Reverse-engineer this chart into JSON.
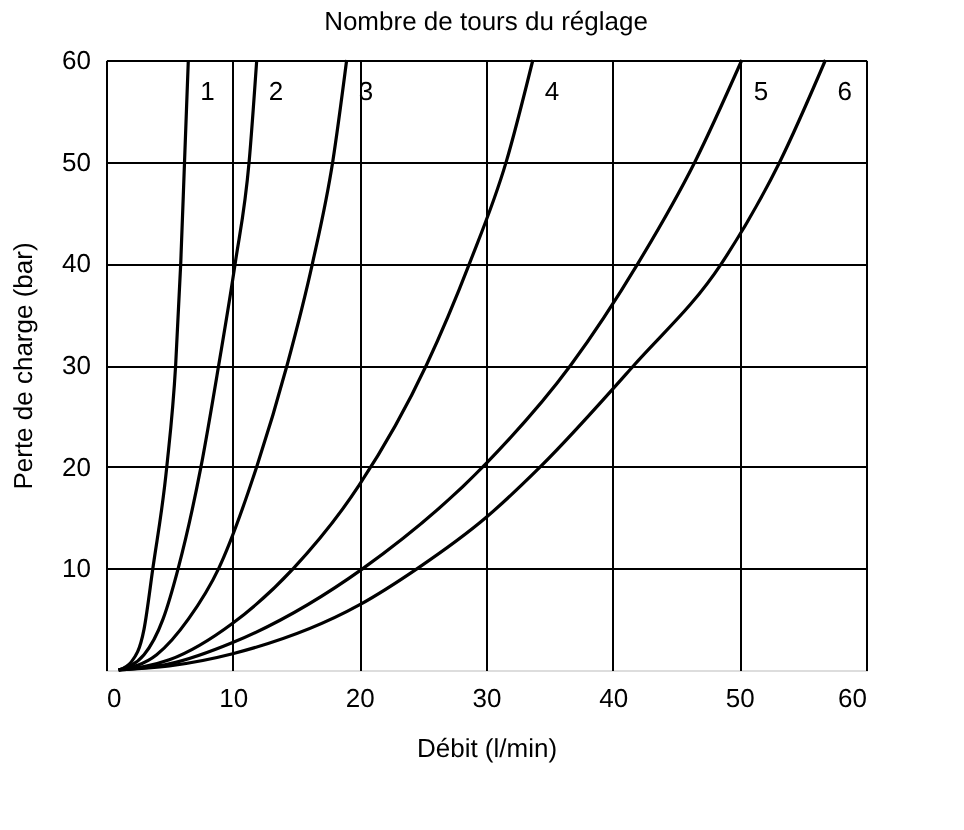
{
  "chart_data": {
    "type": "line",
    "title": "Nombre de tours du réglage",
    "xlabel": "Débit (l/min)",
    "ylabel": "Perte de charge (bar)",
    "xlim": [
      0,
      60
    ],
    "ylim": [
      0,
      60
    ],
    "xticks": [
      0,
      10,
      20,
      30,
      40,
      50,
      60
    ],
    "yticks": [
      10,
      20,
      30,
      40,
      50,
      60
    ],
    "grid": true,
    "marker": "none",
    "line_style": "solid",
    "series": [
      {
        "name": "1",
        "color": "#000000",
        "x": [
          1,
          2,
          3,
          3.7,
          4.8,
          5.5,
          5.9,
          6.2,
          6.5
        ],
        "values": [
          0,
          0.8,
          4,
          10,
          20,
          30,
          40,
          50,
          60
        ]
      },
      {
        "name": "2",
        "color": "#000000",
        "x": [
          1,
          3,
          4.5,
          5.7,
          7.5,
          8.9,
          10.2,
          11.3,
          11.9
        ],
        "values": [
          0,
          1.5,
          5,
          10,
          20,
          30,
          40,
          50,
          60
        ]
      },
      {
        "name": "3",
        "color": "#000000",
        "x": [
          1,
          4,
          6.5,
          8.9,
          11.9,
          14.3,
          16.3,
          17.9,
          19
        ],
        "values": [
          0,
          1.5,
          5,
          10,
          20,
          30,
          40,
          50,
          60
        ]
      },
      {
        "name": "4",
        "color": "#000000",
        "x": [
          1,
          5,
          10,
          14.8,
          20,
          25.3,
          28.7,
          31.6,
          33.7
        ],
        "values": [
          0,
          1,
          4.6,
          10,
          18.2,
          30,
          40,
          50,
          60
        ]
      },
      {
        "name": "5",
        "color": "#000000",
        "x": [
          1,
          5,
          10,
          20.3,
          30,
          36.7,
          42,
          46.5,
          50.2
        ],
        "values": [
          0,
          0.6,
          2.7,
          10,
          20.3,
          30,
          40,
          50,
          60
        ]
      },
      {
        "name": "6",
        "color": "#000000",
        "x": [
          1,
          5,
          10,
          20,
          24.6,
          30,
          34.3,
          41.7,
          48.6,
          53.2,
          56.8
        ],
        "values": [
          0,
          0.4,
          1.6,
          6.4,
          10,
          15,
          20,
          30,
          40,
          50,
          60
        ]
      }
    ]
  }
}
